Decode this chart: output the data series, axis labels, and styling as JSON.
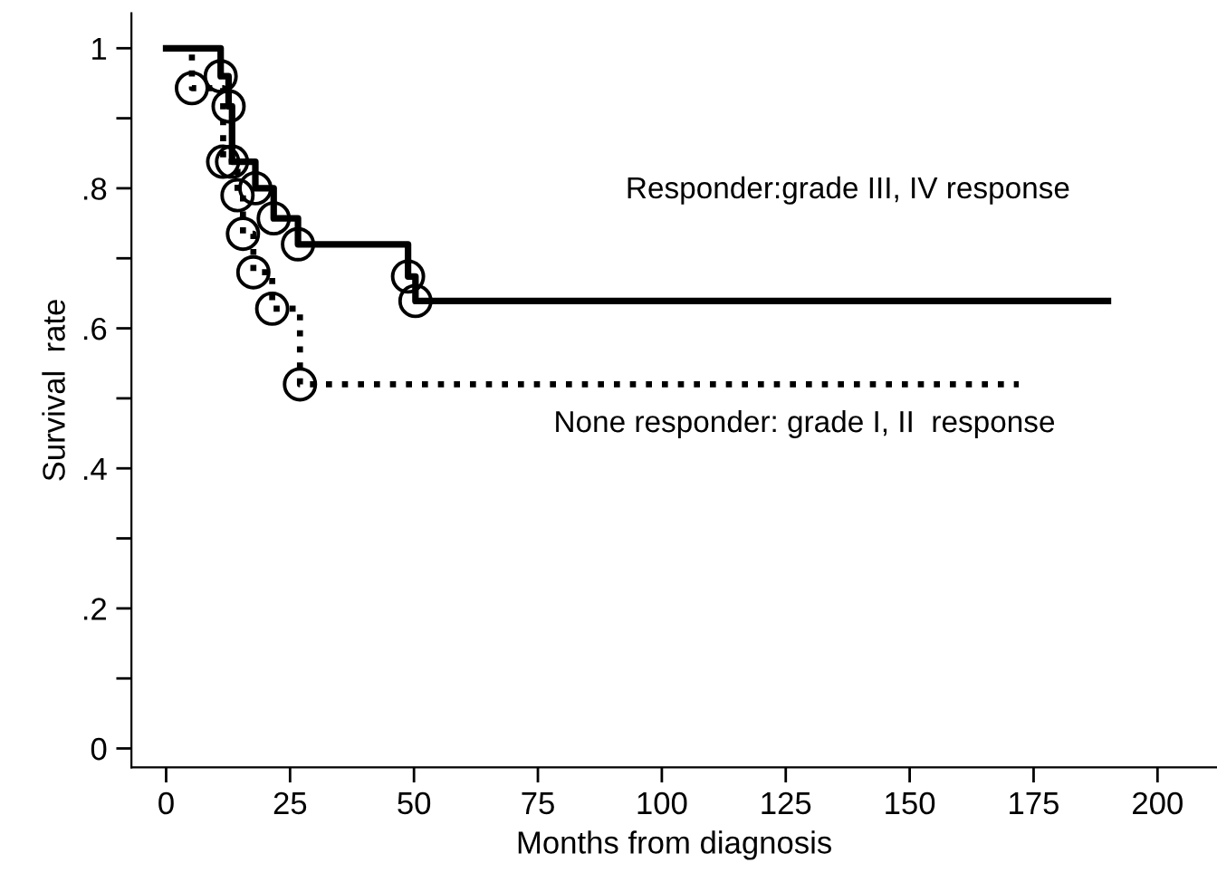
{
  "chart_data": {
    "type": "step",
    "xlabel": "Months from diagnosis",
    "ylabel": "Survival  rate",
    "xlim": [
      -7,
      212
    ],
    "ylim": [
      -0.027,
      1.05
    ],
    "xticks": [
      0,
      25,
      50,
      75,
      100,
      125,
      150,
      175,
      200
    ],
    "yticks": [
      {
        "value": 0,
        "label": "0"
      },
      {
        "value": 0.1,
        "label": null
      },
      {
        "value": 0.2,
        "label": ".2"
      },
      {
        "value": 0.3,
        "label": null
      },
      {
        "value": 0.4,
        "label": ".4"
      },
      {
        "value": 0.5,
        "label": null
      },
      {
        "value": 0.6,
        "label": ".6"
      },
      {
        "value": 0.7,
        "label": null
      },
      {
        "value": 0.8,
        "label": ".8"
      },
      {
        "value": 0.9,
        "label": null
      },
      {
        "value": 1,
        "label": "1"
      }
    ],
    "grid": false,
    "legend": false,
    "series": [
      {
        "color": "#000000",
        "line_style": "solid",
        "marker": "none",
        "x": [
          0,
          11,
          12.6,
          13.3,
          18,
          21.7,
          26.6,
          48.8,
          50.3,
          190
        ],
        "values": [
          1,
          0.96,
          0.917,
          0.838,
          0.8,
          0.757,
          0.72,
          0.674,
          0.639,
          0.639
        ]
      },
      {
        "color": "#000000",
        "line_style": "dotted",
        "marker": "none",
        "x": [
          0,
          5.2,
          11.5,
          14.4,
          15.5,
          17.6,
          21.4,
          27,
          172
        ],
        "values": [
          1,
          0.943,
          0.838,
          0.79,
          0.735,
          0.68,
          0.628,
          0.52,
          0.52
        ]
      },
      {
        "type": "scatter",
        "color": "#000000",
        "marker": "circle",
        "x": [
          11,
          12.6,
          13.3,
          18,
          21.7,
          26.6,
          48.8,
          50.3
        ],
        "values": [
          0.96,
          0.917,
          0.838,
          0.8,
          0.757,
          0.72,
          0.674,
          0.639
        ]
      },
      {
        "type": "scatter",
        "color": "#000000",
        "marker": "circle",
        "x": [
          5.2,
          11.5,
          14.4,
          15.5,
          17.6,
          21.4,
          27
        ],
        "values": [
          0.943,
          0.838,
          0.79,
          0.735,
          0.68,
          0.628,
          0.52
        ]
      }
    ],
    "annotations": [
      "Responder:grade III, IV response",
      "None responder: grade I, II  response"
    ]
  }
}
